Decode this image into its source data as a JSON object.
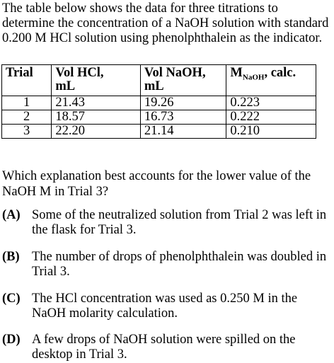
{
  "intro_text": "The table below shows the data for three titrations to determine the concentration of a NaOH solution with standard 0.200 M HCl solution using phenolphthalein as the indicator.",
  "table": {
    "headers": {
      "trial": "Trial",
      "vol_hcl": "Vol HCl,",
      "vol_hcl_unit": "mL",
      "vol_naoh": "Vol NaOH,",
      "vol_naoh_unit": "mL",
      "m_naoh_symbol": "M",
      "m_naoh_subscript": "NaOH",
      "m_naoh_suffix": ", calc."
    },
    "rows": [
      {
        "trial": "1",
        "vol_hcl": "21.43",
        "vol_naoh": "19.26",
        "m_naoh": "0.223"
      },
      {
        "trial": "2",
        "vol_hcl": "18.57",
        "vol_naoh": "16.73",
        "m_naoh": "0.222"
      },
      {
        "trial": "3",
        "vol_hcl": "22.20",
        "vol_naoh": "21.14",
        "m_naoh": "0.210"
      }
    ]
  },
  "question_text": "Which explanation best accounts for the lower value of the NaOH M in Trial 3?",
  "choices": [
    {
      "letter": "(A)",
      "text": "Some of the neutralized solution from Trial 2 was left in the flask for Trial 3."
    },
    {
      "letter": "(B)",
      "text": "The number of drops of phenolphthalein was doubled in Trial 3."
    },
    {
      "letter": "(C)",
      "text": "The HCl concentration was used as 0.250 M in the NaOH molarity calculation."
    },
    {
      "letter": "(D)",
      "text": "A few drops of NaOH solution were spilled on the desktop in Trial 3."
    }
  ]
}
